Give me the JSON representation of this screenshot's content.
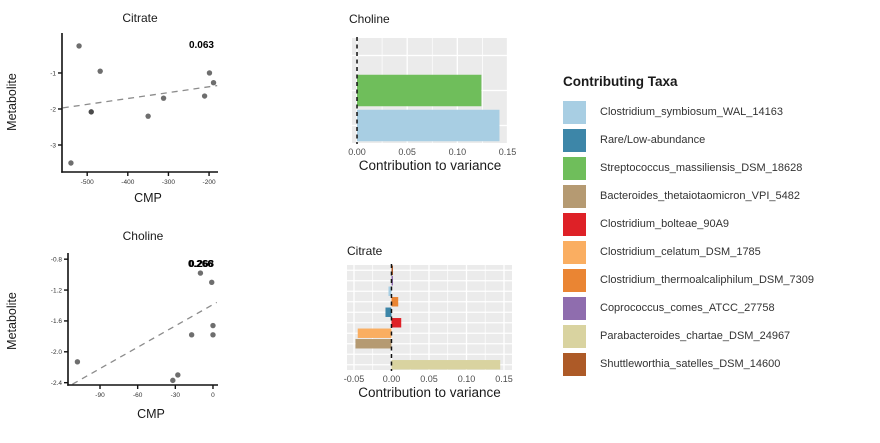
{
  "figure": {
    "background": "#ffffff"
  },
  "palette": {
    "light_blue": "#A8CEE3",
    "steel_blue": "#3D86A8",
    "green": "#6FBE5B",
    "tan": "#B59A72",
    "red": "#DE2127",
    "light_orange": "#FAAE61",
    "orange": "#EA8533",
    "purple": "#8F6DAE",
    "khaki": "#D9D3A0",
    "brown": "#AD5A27"
  },
  "style": {
    "point_color": "#4A4A4A",
    "trend_color": "#8C8C8C",
    "panel_bg": "#EBEBEB",
    "grid_color": "#FFFFFF",
    "axis_color": "#111111",
    "tick_label_color": "#4D4D4D",
    "text_color": "#1A1A1A"
  },
  "legend": {
    "title": "Contributing Taxa",
    "items": [
      {
        "label": "Clostridium_symbiosum_WAL_14163",
        "color": "light_blue"
      },
      {
        "label": "Rare/Low-abundance",
        "color": "steel_blue"
      },
      {
        "label": "Streptococcus_massiliensis_DSM_18628",
        "color": "green"
      },
      {
        "label": "Bacteroides_thetaiotaomicron_VPI_5482",
        "color": "tan"
      },
      {
        "label": "Clostridium_bolteae_90A9",
        "color": "red"
      },
      {
        "label": "Clostridium_celatum_DSM_1785",
        "color": "light_orange"
      },
      {
        "label": "Clostridium_thermoalcaliphilum_DSM_7309",
        "color": "orange"
      },
      {
        "label": "Coprococcus_comes_ATCC_27758",
        "color": "purple"
      },
      {
        "label": "Parabacteroides_chartae_DSM_24967",
        "color": "khaki"
      },
      {
        "label": "Shuttleworthia_satelles_DSM_14600",
        "color": "brown"
      }
    ]
  },
  "chart_data": [
    {
      "id": "citrate-scatter",
      "type": "scatter",
      "title": "Citrate",
      "annotation": "0.063",
      "xlabel": "CMP",
      "ylabel": "Metabolite",
      "xlim": [
        -562,
        -178
      ],
      "ylim": [
        -3.75,
        0.11
      ],
      "xticks": [
        {
          "v": -500,
          "label": "-500"
        },
        {
          "v": -400,
          "label": "-400"
        },
        {
          "v": -300,
          "label": "-300"
        },
        {
          "v": -200,
          "label": "-200"
        }
      ],
      "yticks": [
        {
          "v": -1,
          "label": "-1"
        },
        {
          "v": -2,
          "label": "-2"
        },
        {
          "v": -3,
          "label": "-3"
        }
      ],
      "points": [
        [
          -520,
          -0.25
        ],
        [
          -468,
          -0.95
        ],
        [
          -490,
          -2.08,
          1
        ],
        [
          -540,
          -3.5
        ],
        [
          -350,
          -2.2
        ],
        [
          -312,
          -1.7
        ],
        [
          -211,
          -1.64
        ],
        [
          -199,
          -1.0
        ],
        [
          -189,
          -1.27
        ]
      ],
      "trend": [
        [
          -560,
          -1.97
        ],
        [
          -180,
          -1.35
        ]
      ],
      "grid": false,
      "legend_position": "none"
    },
    {
      "id": "choline-bar",
      "type": "bar",
      "title": "Choline",
      "xlabel": "Contribution to variance",
      "xlim": [
        -0.005,
        0.1505
      ],
      "xticks": [
        {
          "v": 0,
          "label": "0.00"
        },
        {
          "v": 0.05,
          "label": "0.05"
        },
        {
          "v": 0.1,
          "label": "0.10"
        },
        {
          "v": 0.15,
          "label": "0.15"
        }
      ],
      "xticks_minor": [
        0.025,
        0.075,
        0.125
      ],
      "zero_line": true,
      "grid": true,
      "rows": [
        {
          "taxon": "",
          "value": 0,
          "color": null
        },
        {
          "taxon": "Streptococcus_massiliensis_DSM_18628",
          "value": 0.124,
          "color": "green"
        },
        {
          "taxon": "Clostridium_symbiosum_WAL_14163",
          "value": 0.142,
          "color": "light_blue"
        }
      ]
    },
    {
      "id": "choline-scatter",
      "type": "scatter",
      "title": "Choline",
      "annotation": "0.268",
      "annotation_overlap": "0.266",
      "xlabel": "CMP",
      "ylabel": "Metabolite",
      "xlim": [
        -115.5,
        4
      ],
      "ylim": [
        -2.43,
        -0.72
      ],
      "xticks": [
        {
          "v": -90,
          "label": "-90"
        },
        {
          "v": -60,
          "label": "-60"
        },
        {
          "v": -30,
          "label": "-30"
        },
        {
          "v": 0,
          "label": "0"
        }
      ],
      "yticks": [
        {
          "v": -0.8,
          "label": "-0.8"
        },
        {
          "v": -1.2,
          "label": "-1.2"
        },
        {
          "v": -1.6,
          "label": "-1.6"
        },
        {
          "v": -2.0,
          "label": "-2.0"
        },
        {
          "v": -2.4,
          "label": "-2.4"
        }
      ],
      "points": [
        [
          -108,
          -2.13
        ],
        [
          -32,
          -2.37
        ],
        [
          -28,
          -2.3
        ],
        [
          -17,
          -1.78
        ],
        [
          -10,
          -0.98
        ],
        [
          -1,
          -1.1
        ],
        [
          0,
          -1.66
        ],
        [
          0,
          -1.78
        ]
      ],
      "trend": [
        [
          -112,
          -2.42
        ],
        [
          3,
          -1.36
        ]
      ],
      "grid": false,
      "legend_position": "none"
    },
    {
      "id": "citrate-bar",
      "type": "bar",
      "title": "Citrate",
      "xlabel": "Contribution to variance",
      "xlim": [
        -0.0593,
        0.1607
      ],
      "xticks": [
        {
          "v": -0.05,
          "label": "-0.05"
        },
        {
          "v": 0,
          "label": "0.00"
        },
        {
          "v": 0.05,
          "label": "0.05"
        },
        {
          "v": 0.1,
          "label": "0.10"
        },
        {
          "v": 0.15,
          "label": "0.15"
        }
      ],
      "xticks_minor": [
        -0.025,
        0.025,
        0.075,
        0.125
      ],
      "zero_line": true,
      "grid": true,
      "rows": [
        {
          "taxon": "Shuttleworthia_satelles_DSM_14600",
          "value": 0.002,
          "color": "brown"
        },
        {
          "taxon": "Coprococcus_comes_ATCC_27758",
          "value": 0.002,
          "color": "purple"
        },
        {
          "taxon": "Clostridium_symbiosum_WAL_14163",
          "value": -0.004,
          "color": "light_blue"
        },
        {
          "taxon": "Clostridium_thermoalcaliphilum_DSM_7309",
          "value": 0.009,
          "color": "orange"
        },
        {
          "taxon": "Rare/Low-abundance",
          "value": -0.008,
          "color": "steel_blue"
        },
        {
          "taxon": "Clostridium_bolteae_90A9",
          "value": 0.013,
          "color": "red"
        },
        {
          "taxon": "Clostridium_celatum_DSM_1785",
          "value": -0.045,
          "color": "light_orange"
        },
        {
          "taxon": "Bacteroides_thetaiotaomicron_VPI_5482",
          "value": -0.048,
          "color": "tan"
        },
        {
          "taxon": "Streptococcus_massiliensis_DSM_18628",
          "value": 0.0,
          "color": "green"
        },
        {
          "taxon": "Parabacteroides_chartae_DSM_24967",
          "value": 0.145,
          "color": "khaki"
        }
      ]
    }
  ]
}
